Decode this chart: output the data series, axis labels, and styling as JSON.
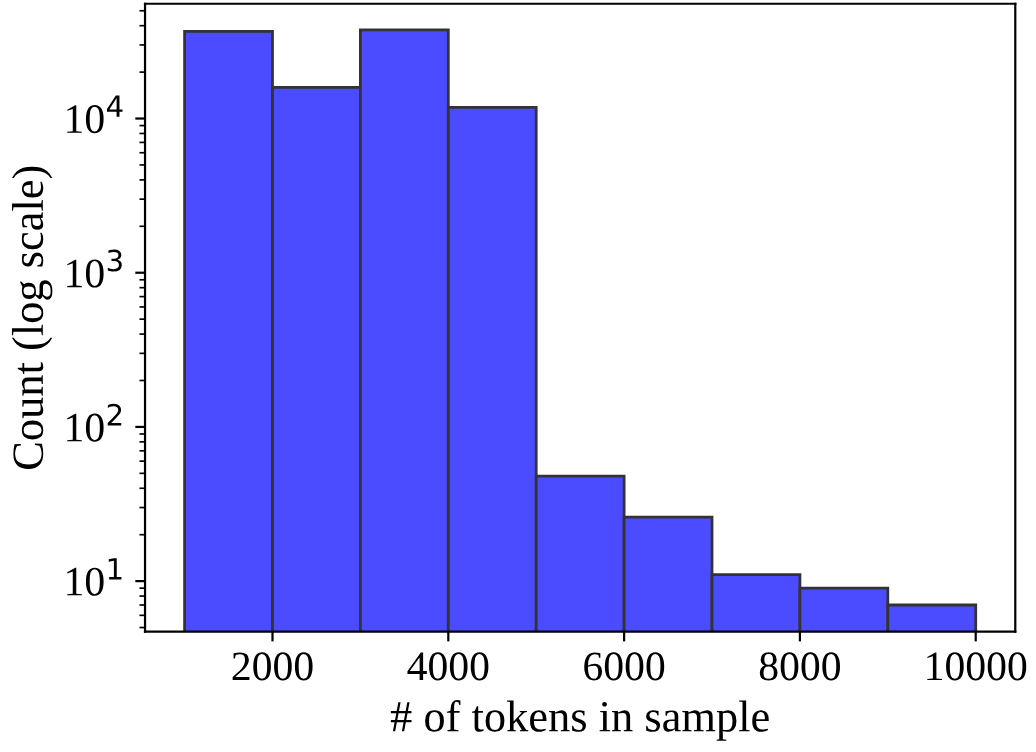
{
  "chart_data": {
    "type": "histogram",
    "xlabel": "# of tokens in sample",
    "ylabel": "Count (log scale)",
    "bins": [
      1000,
      2000,
      3000,
      4000,
      5000,
      6000,
      7000,
      8000,
      9000,
      10000
    ],
    "values": [
      36800,
      15900,
      37600,
      11800,
      48,
      26,
      11,
      9,
      7
    ],
    "color": "#4b4bff",
    "log": "y",
    "grid": false,
    "xlim": [
      550,
      10450
    ],
    "xticks": [
      2000,
      4000,
      6000,
      8000,
      10000
    ],
    "ylim": [
      4.7,
      55500
    ],
    "yticks": [
      {
        "value": 10,
        "label": "10$^{1}$"
      },
      {
        "value": 100,
        "label": "10$^{2}$"
      },
      {
        "value": 1000,
        "label": "10$^{3}$"
      },
      {
        "value": 10000,
        "label": "10$^{4}$"
      }
    ]
  }
}
